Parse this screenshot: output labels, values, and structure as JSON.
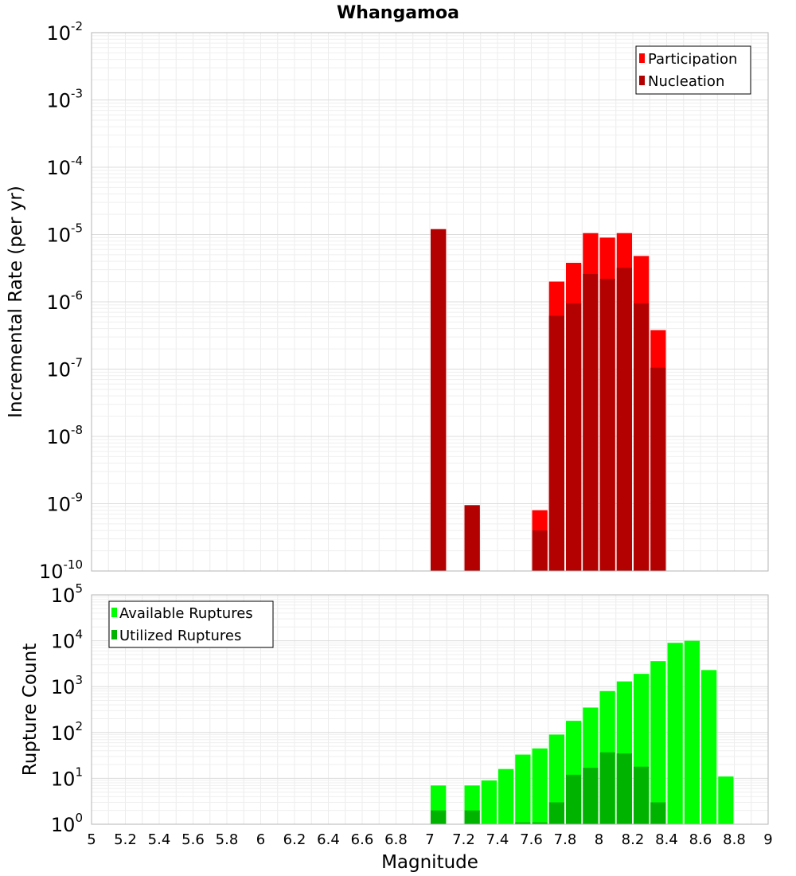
{
  "title": "Whangamoa",
  "xlabel": "Magnitude",
  "colors": {
    "participation": "#ff0000",
    "nucleation": "#b30000",
    "available": "#00ff00",
    "utilized": "#00b300"
  },
  "chart_data": [
    {
      "type": "bar",
      "title": "Whangamoa",
      "ylabel": "Incremental Rate (per yr)",
      "xlabel": "",
      "yscale": "log",
      "ylim": [
        1e-10,
        0.01
      ],
      "xlim": [
        5,
        9
      ],
      "grid": true,
      "legend_position": "top-right",
      "ytick_base": "10",
      "ytick_exponents": [
        "-10",
        "-9",
        "-8",
        "-7",
        "-6",
        "-5",
        "-4",
        "-3",
        "-2"
      ],
      "series": [
        {
          "name": "Participation",
          "x": [
            7.05,
            7.25,
            7.65,
            7.75,
            7.85,
            7.95,
            8.05,
            8.15,
            8.25,
            8.35
          ],
          "values": [
            1.2e-05,
            9.5e-10,
            8e-10,
            2e-06,
            3.8e-06,
            1.05e-05,
            9e-06,
            1.05e-05,
            4.8e-06,
            3.8e-07
          ]
        },
        {
          "name": "Nucleation",
          "x": [
            7.05,
            7.25,
            7.65,
            7.75,
            7.85,
            7.95,
            8.05,
            8.15,
            8.25,
            8.35
          ],
          "values": [
            1.2e-05,
            9.5e-10,
            4e-10,
            6.2e-07,
            9.5e-07,
            2.6e-06,
            2.2e-06,
            3.2e-06,
            9.5e-07,
            1.05e-07
          ]
        }
      ]
    },
    {
      "type": "bar",
      "ylabel": "Rupture Count",
      "xlabel": "Magnitude",
      "yscale": "log",
      "ylim": [
        1,
        100000.0
      ],
      "xlim": [
        5,
        9
      ],
      "grid": true,
      "legend_position": "top-left",
      "ytick_base": "10",
      "ytick_exponents": [
        "0",
        "1",
        "2",
        "3",
        "4",
        "5"
      ],
      "xticks": [
        "5",
        "5.2",
        "5.4",
        "5.6",
        "5.8",
        "6",
        "6.2",
        "6.4",
        "6.6",
        "6.8",
        "7",
        "7.2",
        "7.4",
        "7.6",
        "7.8",
        "8",
        "8.2",
        "8.4",
        "8.6",
        "8.8",
        "9"
      ],
      "series": [
        {
          "name": "Available Ruptures",
          "x": [
            7.05,
            7.25,
            7.35,
            7.45,
            7.55,
            7.65,
            7.75,
            7.85,
            7.95,
            8.05,
            8.15,
            8.25,
            8.35,
            8.45,
            8.55,
            8.65,
            8.75
          ],
          "values": [
            7,
            7,
            9,
            16,
            33,
            45,
            90,
            180,
            350,
            800,
            1300,
            1900,
            3600,
            9000,
            10000,
            2300,
            11
          ]
        },
        {
          "name": "Utilized Ruptures",
          "x": [
            7.05,
            7.25,
            7.55,
            7.65,
            7.75,
            7.85,
            7.95,
            8.05,
            8.15,
            8.25,
            8.35
          ],
          "values": [
            2,
            2,
            1.1,
            1.1,
            3,
            12,
            17,
            37,
            35,
            18,
            3
          ]
        }
      ]
    }
  ]
}
